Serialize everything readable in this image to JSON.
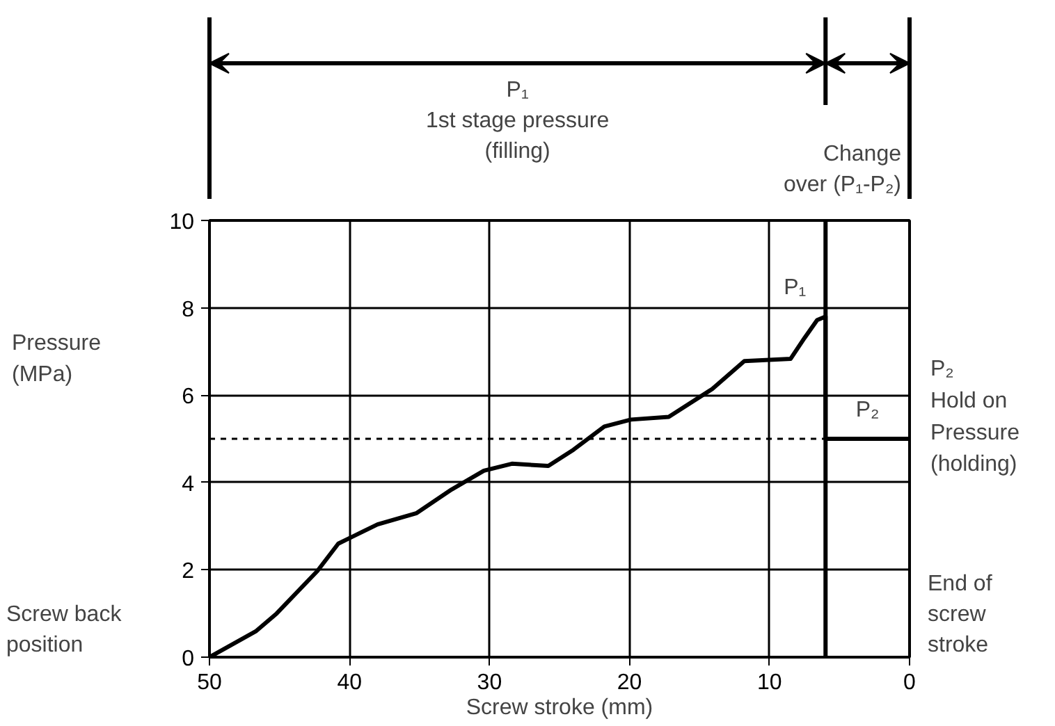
{
  "chart_data": {
    "type": "line",
    "xlabel": "Screw stroke (mm)",
    "ylabel": "Pressure\n(MPa)",
    "xlim": [
      50,
      0
    ],
    "xticks": [
      50,
      40,
      30,
      20,
      10,
      0
    ],
    "ylim": [
      0,
      10
    ],
    "yticks": [
      0,
      2,
      4,
      6,
      8,
      10
    ],
    "grid": true,
    "tick_labels": "xy",
    "series": [
      {
        "color": "#000000",
        "x": [
          50,
          46.7,
          45.2,
          42.3,
          40.8,
          38.0,
          35.2,
          32.7,
          30.4,
          28.4,
          25.8,
          24.0,
          21.8,
          19.9,
          17.2,
          14.1,
          11.8,
          8.5,
          7.5,
          6.6,
          6.0,
          6.0,
          0
        ],
        "values": [
          0,
          0.59,
          1.0,
          1.97,
          2.6,
          3.04,
          3.3,
          3.84,
          4.27,
          4.43,
          4.38,
          4.75,
          5.28,
          5.44,
          5.5,
          6.14,
          6.78,
          6.83,
          7.31,
          7.72,
          7.8,
          5,
          5
        ]
      }
    ],
    "ref_lines": [
      {
        "axis": "y",
        "value": 5,
        "label": null,
        "line_style": "dashed",
        "color": "#000000"
      },
      {
        "axis": "x",
        "value": 6,
        "label": null,
        "color": "#000000"
      }
    ],
    "annotations": [
      "P₁\n1st stage pressure\n(filling)",
      "Change\nover (P₁-P₂)",
      "Screw back\nposition",
      "End of\nscrew\nstroke",
      "P₂\nHold on\nPressure\n(holding)",
      {
        "text": "P₁",
        "x": 6,
        "y": 7.8
      },
      {
        "text": "P₂",
        "x": 3,
        "y": 5
      }
    ]
  }
}
